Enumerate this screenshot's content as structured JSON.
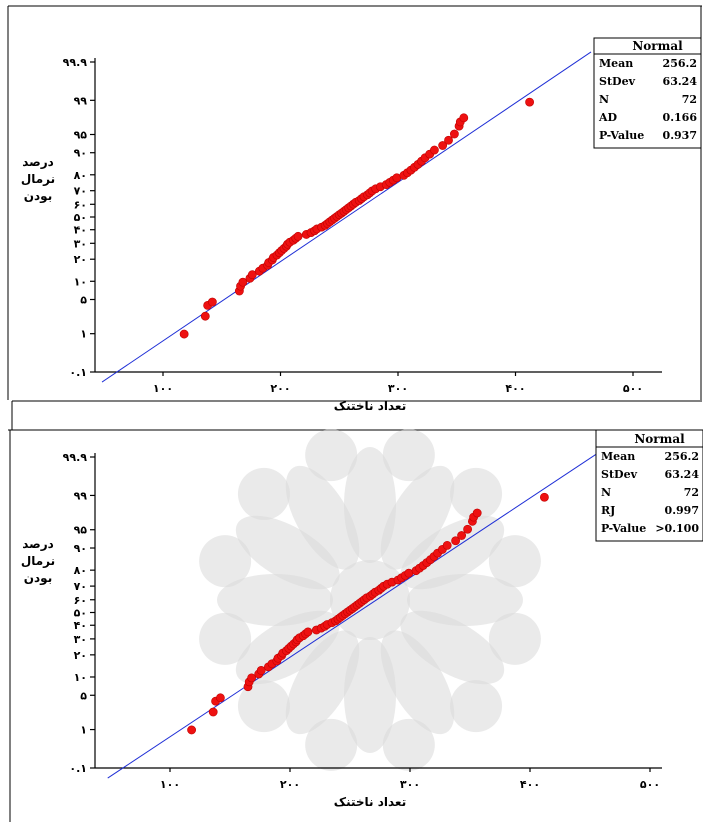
{
  "colors": {
    "points": "#ee1111",
    "fit_line": "#1f2fd6",
    "axes": "#000000",
    "watermark": "#d9d9d9"
  },
  "chart_data": [
    {
      "type": "scatter",
      "title": "",
      "xlabel": "تعداد ناختنک",
      "ylabel_lines": [
        "درصد",
        "نرمال",
        "بودن"
      ],
      "x_ticks": [
        "۱۰۰",
        "۲۰۰",
        "۳۰۰",
        "۴۰۰",
        "۵۰۰"
      ],
      "x_tick_values": [
        100,
        200,
        300,
        400,
        500
      ],
      "y_ticks": [
        "۰.۱",
        "۱",
        "۵",
        "۱۰",
        "۲۰",
        "۳۰",
        "۴۰",
        "۵۰",
        "۶۰",
        "۷۰",
        "۸۰",
        "۹۰",
        "۹۵",
        "۹۹",
        "۹۹.۹"
      ],
      "y_tick_values": [
        0.1,
        1,
        5,
        10,
        20,
        30,
        40,
        50,
        60,
        70,
        80,
        90,
        95,
        99,
        99.9
      ],
      "xlim": [
        70,
        530
      ],
      "y_scale": "normal-probability",
      "legend": {
        "title": "Normal",
        "placement": "top-right",
        "rows": [
          {
            "label": "Mean",
            "value": "256.2"
          },
          {
            "label": "StDev",
            "value": "63.24"
          },
          {
            "label": "N",
            "value": "72"
          },
          {
            "label": "AD",
            "value": "0.166"
          },
          {
            "label": "P-Value",
            "value": "0.937"
          }
        ]
      },
      "fit": {
        "mean": 256.2,
        "stdev": 63.24
      },
      "points_x": [
        118,
        136,
        138,
        142,
        165,
        166,
        168,
        174,
        176,
        182,
        185,
        189,
        190,
        193,
        194,
        197,
        199,
        201,
        203,
        205,
        206,
        208,
        211,
        213,
        215,
        222,
        226,
        229,
        231,
        235,
        238,
        240,
        242,
        244,
        246,
        248,
        250,
        252,
        254,
        256,
        258,
        260,
        262,
        264,
        267,
        269,
        271,
        274,
        276,
        278,
        281,
        285,
        290,
        293,
        296,
        299,
        305,
        308,
        311,
        314,
        317,
        320,
        323,
        327,
        331,
        338,
        343,
        348,
        352,
        353,
        356,
        412
      ],
      "points_y": [
        0.98,
        2.4,
        3.9,
        4.5,
        7.0,
        8.4,
        9.7,
        11.1,
        12.5,
        14.0,
        15.4,
        16.8,
        18.2,
        19.6,
        21.0,
        22.4,
        23.8,
        25.2,
        26.6,
        28.0,
        29.4,
        30.8,
        32.2,
        33.6,
        35.0,
        36.4,
        37.8,
        39.2,
        40.6,
        42.0,
        43.4,
        44.8,
        46.2,
        47.6,
        49.0,
        50.4,
        51.8,
        53.1,
        54.5,
        55.9,
        57.3,
        58.7,
        60.1,
        61.5,
        62.9,
        64.3,
        65.7,
        67.1,
        68.5,
        69.9,
        71.3,
        72.7,
        74.1,
        75.5,
        76.9,
        78.3,
        79.7,
        81.1,
        82.5,
        83.9,
        85.3,
        86.7,
        88.1,
        89.5,
        90.9,
        92.3,
        93.7,
        95.1,
        96.5,
        97.1,
        97.6,
        98.9
      ]
    },
    {
      "type": "scatter",
      "title": "",
      "xlabel": "تعداد ناختنک",
      "ylabel_lines": [
        "درصد",
        "نرمال",
        "بودن"
      ],
      "x_ticks": [
        "۱۰۰",
        "۲۰۰",
        "۳۰۰",
        "۴۰۰",
        "۵۰۰"
      ],
      "x_tick_values": [
        100,
        200,
        300,
        400,
        500
      ],
      "y_ticks": [
        "۰.۱",
        "۱",
        "۵",
        "۱۰",
        "۲۰",
        "۳۰",
        "۴۰",
        "۵۰",
        "۶۰",
        "۷۰",
        "۸۰",
        "۹۰",
        "۹۵",
        "۹۹",
        "۹۹.۹"
      ],
      "y_tick_values": [
        0.1,
        1,
        5,
        10,
        20,
        30,
        40,
        50,
        60,
        70,
        80,
        90,
        95,
        99,
        99.9
      ],
      "xlim": [
        70,
        530
      ],
      "y_scale": "normal-probability",
      "legend": {
        "title": "Normal",
        "placement": "top-right",
        "rows": [
          {
            "label": "Mean",
            "value": "256.2"
          },
          {
            "label": "StDev",
            "value": "63.24"
          },
          {
            "label": "N",
            "value": "72"
          },
          {
            "label": "RJ",
            "value": "0.997"
          },
          {
            "label": "P-Value",
            "value": ">0.100"
          }
        ]
      },
      "fit": {
        "mean": 256.2,
        "stdev": 63.24
      },
      "points_x": [
        118,
        136,
        138,
        142,
        165,
        166,
        168,
        174,
        176,
        182,
        185,
        189,
        190,
        193,
        194,
        197,
        199,
        201,
        203,
        205,
        206,
        208,
        211,
        213,
        215,
        222,
        226,
        229,
        231,
        235,
        238,
        240,
        242,
        244,
        246,
        248,
        250,
        252,
        254,
        256,
        258,
        260,
        262,
        264,
        267,
        269,
        271,
        274,
        276,
        278,
        281,
        285,
        290,
        293,
        296,
        299,
        305,
        308,
        311,
        314,
        317,
        320,
        323,
        327,
        331,
        338,
        343,
        348,
        352,
        353,
        356,
        412
      ],
      "points_y": [
        0.98,
        2.4,
        3.9,
        4.5,
        7.0,
        8.4,
        9.7,
        11.1,
        12.5,
        14.0,
        15.4,
        16.8,
        18.2,
        19.6,
        21.0,
        22.4,
        23.8,
        25.2,
        26.6,
        28.0,
        29.4,
        30.8,
        32.2,
        33.6,
        35.0,
        36.4,
        37.8,
        39.2,
        40.6,
        42.0,
        43.4,
        44.8,
        46.2,
        47.6,
        49.0,
        50.4,
        51.8,
        53.1,
        54.5,
        55.9,
        57.3,
        58.7,
        60.1,
        61.5,
        62.9,
        64.3,
        65.7,
        67.1,
        68.5,
        69.9,
        71.3,
        72.7,
        74.1,
        75.5,
        76.9,
        78.3,
        79.7,
        81.1,
        82.5,
        83.9,
        85.3,
        86.7,
        88.1,
        89.5,
        90.9,
        92.3,
        93.7,
        95.1,
        96.5,
        97.1,
        97.6,
        98.9
      ]
    }
  ]
}
